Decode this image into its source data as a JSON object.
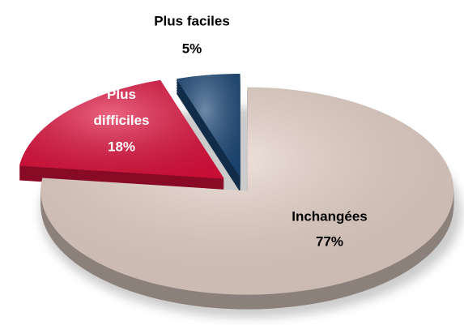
{
  "chart_data": {
    "type": "pie",
    "categories": [
      "Inchangées",
      "Plus difficiles",
      "Plus faciles"
    ],
    "values": [
      77,
      18,
      5
    ],
    "value_labels": [
      "77%",
      "18%",
      "5%"
    ],
    "colors": [
      "#ead6cb",
      "#e3103d",
      "#1d4a7a"
    ],
    "label_colors": [
      "#000000",
      "#ffffff",
      "#000000"
    ]
  }
}
